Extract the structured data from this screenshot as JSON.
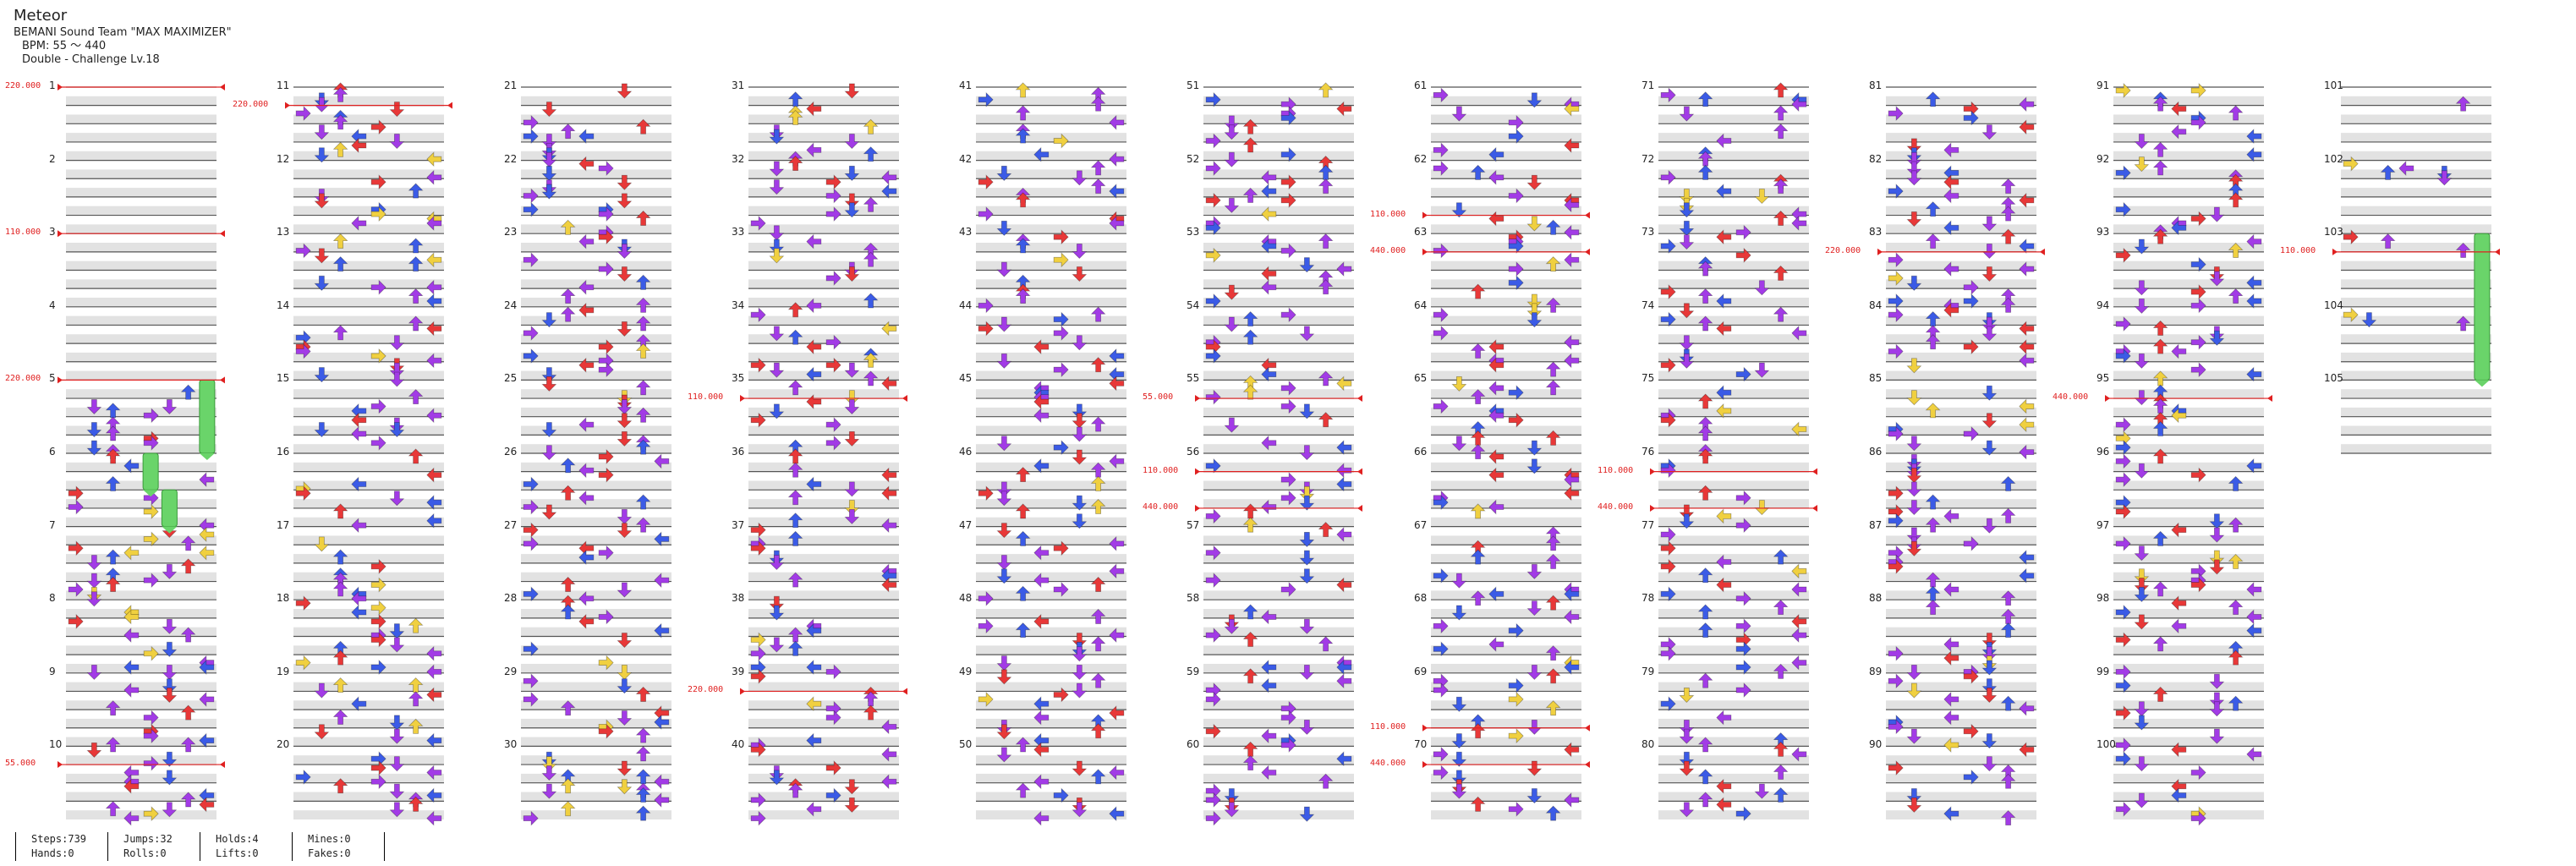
{
  "song": {
    "title": "Meteor",
    "artist": "BEMANI Sound Team \"MAX MAXIMIZER\"",
    "bpm": "BPM: 55 ～ 440",
    "difficulty": "Double - Challenge Lv.18"
  },
  "stats": [
    [
      "Steps:739",
      "Hands:0"
    ],
    [
      "Jumps:32",
      "Rolls:0"
    ],
    [
      "Holds:4",
      "Lifts:0"
    ],
    [
      "Mines:0",
      "Fakes:0"
    ]
  ],
  "measures": [
    "1",
    "2",
    "3",
    "4",
    "5",
    "6",
    "7",
    "8",
    "9",
    "10",
    "11",
    "12",
    "13",
    "14",
    "15",
    "16",
    "17",
    "18",
    "19",
    "20",
    "21",
    "22",
    "23",
    "24",
    "25",
    "26",
    "27",
    "28",
    "29",
    "30",
    "31",
    "32",
    "33",
    "34",
    "35",
    "36",
    "37",
    "38",
    "39",
    "40",
    "41",
    "42",
    "43",
    "44",
    "45",
    "46",
    "47",
    "48",
    "49",
    "50",
    "51",
    "52",
    "53",
    "54",
    "55",
    "56",
    "57",
    "58",
    "59",
    "60",
    "61",
    "62",
    "63",
    "64",
    "65",
    "66",
    "67",
    "68",
    "69",
    "70",
    "71",
    "72",
    "73",
    "74",
    "75",
    "76",
    "77",
    "78",
    "79",
    "80",
    "81",
    "82",
    "83",
    "84",
    "85",
    "86",
    "87",
    "88",
    "89",
    "90",
    "91",
    "92",
    "93",
    "94",
    "95",
    "96",
    "97",
    "98",
    "99",
    "100",
    "101",
    "102",
    "103",
    "104",
    "105"
  ],
  "bpm_changes": [
    {
      "measure": 1,
      "label": "220.000"
    },
    {
      "measure": 3,
      "label": "110.000"
    },
    {
      "measure": 5,
      "label": "220.000"
    },
    {
      "measure": 10.25,
      "label": "55.000"
    },
    {
      "measure": 11.25,
      "label": "220.000"
    },
    {
      "measure": 35.25,
      "label": "110.000"
    },
    {
      "measure": 39.25,
      "label": "220.000"
    },
    {
      "measure": 55.25,
      "label": "55.000"
    },
    {
      "measure": 56.25,
      "label": "110.000"
    },
    {
      "measure": 56.75,
      "label": "440.000"
    },
    {
      "measure": 62.75,
      "label": "110.000"
    },
    {
      "measure": 63.25,
      "label": "440.000"
    },
    {
      "measure": 69.75,
      "label": "110.000"
    },
    {
      "measure": 70.25,
      "label": "440.000"
    },
    {
      "measure": 76.25,
      "label": "110.000"
    },
    {
      "measure": 76.75,
      "label": "440.000"
    },
    {
      "measure": 83.25,
      "label": "220.000"
    },
    {
      "measure": 95.25,
      "label": "440.000"
    },
    {
      "measure": 103.25,
      "label": "110.000"
    }
  ],
  "colors": {
    "quarter": "#e83838",
    "eighth": "#3b5be6",
    "sixteenth": "#a23be6",
    "twelfth": "#f0d040",
    "hold": "#6ad46a",
    "band": "#e2e2e2",
    "bpm_line": "#e02020"
  }
}
